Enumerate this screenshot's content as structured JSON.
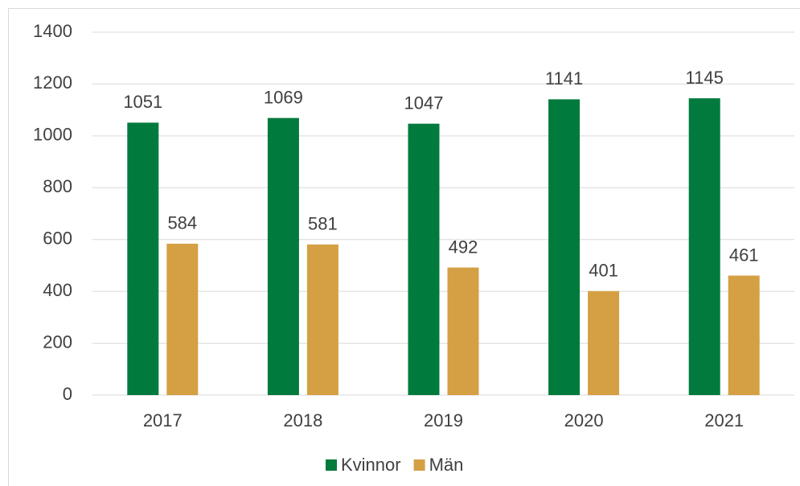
{
  "chart_data": {
    "type": "bar",
    "categories": [
      "2017",
      "2018",
      "2019",
      "2020",
      "2021"
    ],
    "series": [
      {
        "name": "Kvinnor",
        "color": "#007a3d",
        "values": [
          1051,
          1069,
          1047,
          1141,
          1145
        ]
      },
      {
        "name": "Män",
        "color": "#d4a043",
        "values": [
          584,
          581,
          492,
          401,
          461
        ]
      }
    ],
    "ylim": [
      0,
      1400
    ],
    "yticks": [
      0,
      200,
      400,
      600,
      800,
      1000,
      1200,
      1400
    ],
    "grid": true,
    "legend": "bottom"
  }
}
